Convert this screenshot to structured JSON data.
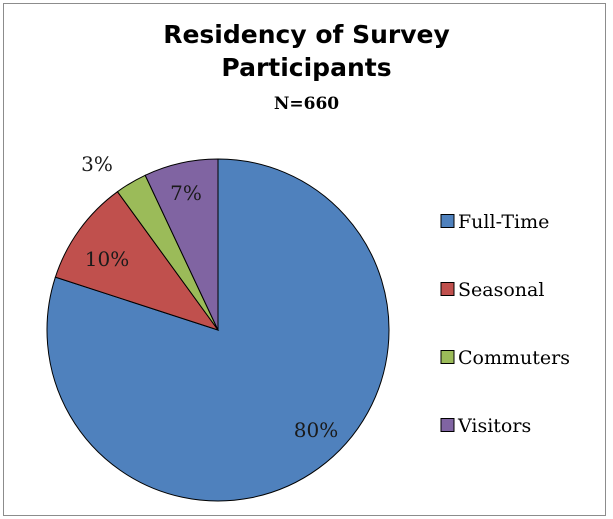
{
  "chart_data": {
    "type": "pie",
    "title_line1": "Residency of Survey",
    "title_line2": "Participants",
    "subtitle": "N=660",
    "slices": [
      {
        "name": "Full-Time",
        "value": 80,
        "label": "80%",
        "color": "#4f81bd"
      },
      {
        "name": "Seasonal",
        "value": 10,
        "label": "10%",
        "color": "#c0504d"
      },
      {
        "name": "Commuters",
        "value": 3,
        "label": "3%",
        "color": "#9bbb59"
      },
      {
        "name": "Visitors",
        "value": 7,
        "label": "7%",
        "color": "#8064a2"
      }
    ],
    "legend_position": "right",
    "start_angle_deg": 0,
    "direction": "clockwise"
  }
}
